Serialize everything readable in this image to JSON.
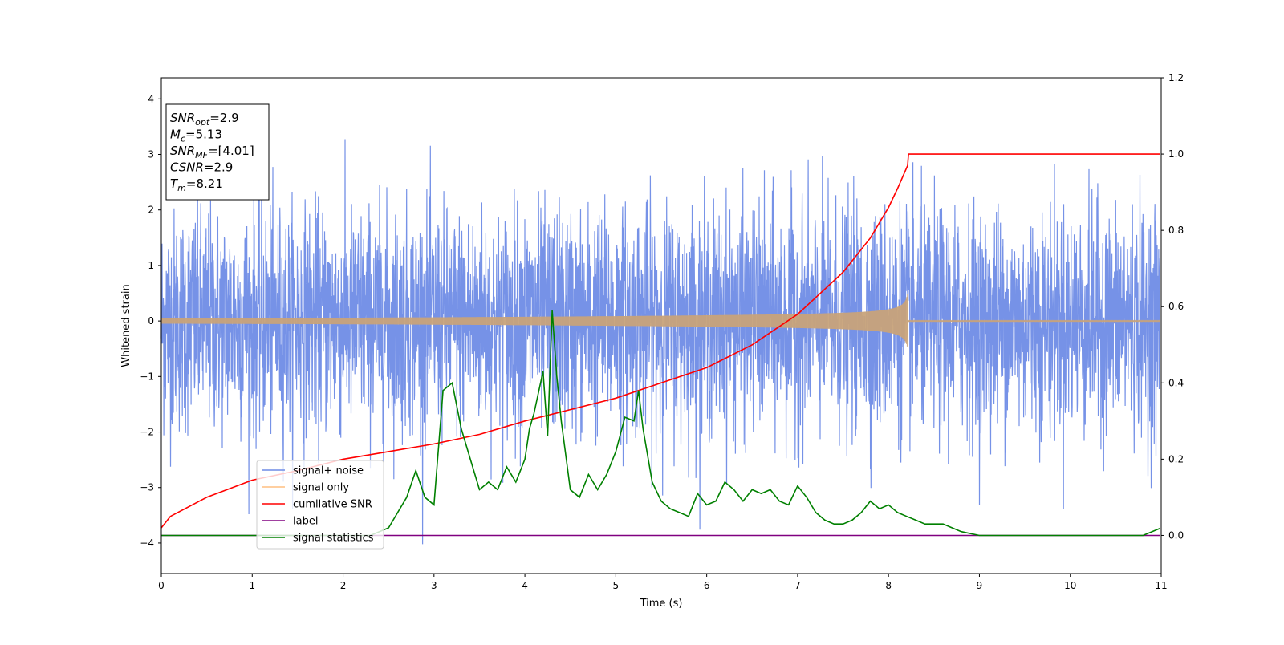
{
  "chart_data": {
    "type": "line",
    "xlabel": "Time (s)",
    "ylabel": "Whitened strain",
    "xlim": [
      0,
      11
    ],
    "ylim_left": [
      -4.55,
      4.38
    ],
    "ylim_right": [
      -0.1,
      1.2
    ],
    "x_ticks": [
      "0",
      "1",
      "2",
      "3",
      "4",
      "5",
      "6",
      "7",
      "8",
      "9",
      "10",
      "11"
    ],
    "y_left_ticks": [
      "4",
      "3",
      "2",
      "1",
      "0",
      "−1",
      "−2",
      "−3",
      "−4"
    ],
    "y_right_ticks": [
      "1.2",
      "1.0",
      "0.8",
      "0.6",
      "0.4",
      "0.2",
      "0.0"
    ],
    "legend": {
      "placement": "lower-left",
      "entries": [
        {
          "label": "signal+ noise",
          "color": "#6f8ce6"
        },
        {
          "label": "signal only",
          "color": "#ffbf80"
        },
        {
          "label": "cumilative SNR",
          "color": "#ff0000"
        },
        {
          "label": "label",
          "color": "#800080"
        },
        {
          "label": "signal statistics",
          "color": "#008000"
        }
      ]
    },
    "annotation": [
      {
        "name": "SNR",
        "sub": "opt",
        "value": "=2.9"
      },
      {
        "name": "M",
        "sub": "c",
        "value": "=5.13"
      },
      {
        "name": "SNR",
        "sub": "MF",
        "value": "=[4.01]"
      },
      {
        "name": "CSNR",
        "sub": "",
        "value": "=2.9"
      },
      {
        "name": "T",
        "sub": "m",
        "value": "=8.21"
      }
    ],
    "series": [
      {
        "name": "signal+ noise",
        "axis": "left",
        "color": "#6f8ce6",
        "noise": {
          "sigma": 1.0,
          "range": [
            -4.2,
            4.0
          ],
          "t_start": 0,
          "t_end": 11
        }
      },
      {
        "name": "signal only",
        "axis": "left",
        "color": "#c8a37a",
        "chirp": {
          "t_start": 0,
          "t_merge": 8.21,
          "t_end": 11,
          "amp_start": 0.02,
          "amp_peak": 0.45
        }
      },
      {
        "name": "cumilative SNR",
        "axis": "right",
        "color": "#ff0000",
        "x": [
          0,
          0.1,
          0.5,
          1,
          1.5,
          2,
          2.5,
          3,
          3.5,
          4,
          4.5,
          5,
          5.5,
          6,
          6.5,
          7,
          7.5,
          7.8,
          8.0,
          8.1,
          8.21,
          8.22,
          11
        ],
        "values": [
          0.02,
          0.05,
          0.1,
          0.145,
          0.17,
          0.2,
          0.22,
          0.24,
          0.265,
          0.3,
          0.33,
          0.36,
          0.4,
          0.44,
          0.5,
          0.58,
          0.69,
          0.78,
          0.86,
          0.91,
          0.97,
          1.0,
          1.0
        ]
      },
      {
        "name": "label",
        "axis": "right",
        "color": "#800080",
        "x": [
          0,
          11
        ],
        "values": [
          0.0,
          0.0
        ]
      },
      {
        "name": "signal statistics",
        "axis": "right",
        "color": "#008000",
        "x": [
          0,
          0.5,
          1,
          1.5,
          2,
          2.3,
          2.5,
          2.7,
          2.8,
          2.9,
          3.0,
          3.1,
          3.2,
          3.3,
          3.4,
          3.5,
          3.6,
          3.7,
          3.8,
          3.9,
          4.0,
          4.05,
          4.1,
          4.2,
          4.25,
          4.3,
          4.35,
          4.4,
          4.5,
          4.6,
          4.7,
          4.8,
          4.9,
          5.0,
          5.1,
          5.2,
          5.25,
          5.3,
          5.4,
          5.5,
          5.6,
          5.7,
          5.8,
          5.9,
          6.0,
          6.1,
          6.2,
          6.3,
          6.4,
          6.5,
          6.6,
          6.7,
          6.8,
          6.9,
          7.0,
          7.1,
          7.2,
          7.3,
          7.4,
          7.5,
          7.6,
          7.7,
          7.8,
          7.9,
          8.0,
          8.1,
          8.2,
          8.3,
          8.4,
          8.5,
          8.6,
          8.7,
          8.8,
          9.0,
          9.5,
          10.0,
          10.5,
          10.8,
          11.0
        ],
        "values": [
          0.0,
          0.0,
          0.0,
          0.0,
          0.0,
          0.0,
          0.02,
          0.1,
          0.17,
          0.1,
          0.08,
          0.38,
          0.4,
          0.28,
          0.2,
          0.12,
          0.14,
          0.12,
          0.18,
          0.14,
          0.2,
          0.28,
          0.32,
          0.43,
          0.26,
          0.59,
          0.42,
          0.3,
          0.12,
          0.1,
          0.16,
          0.12,
          0.16,
          0.22,
          0.31,
          0.3,
          0.38,
          0.28,
          0.14,
          0.09,
          0.07,
          0.06,
          0.05,
          0.11,
          0.08,
          0.09,
          0.14,
          0.12,
          0.09,
          0.12,
          0.11,
          0.12,
          0.09,
          0.08,
          0.13,
          0.1,
          0.06,
          0.04,
          0.03,
          0.03,
          0.04,
          0.06,
          0.09,
          0.07,
          0.08,
          0.06,
          0.05,
          0.04,
          0.03,
          0.03,
          0.03,
          0.02,
          0.01,
          0.0,
          0.0,
          0.0,
          0.0,
          0.0,
          0.02
        ]
      }
    ]
  }
}
